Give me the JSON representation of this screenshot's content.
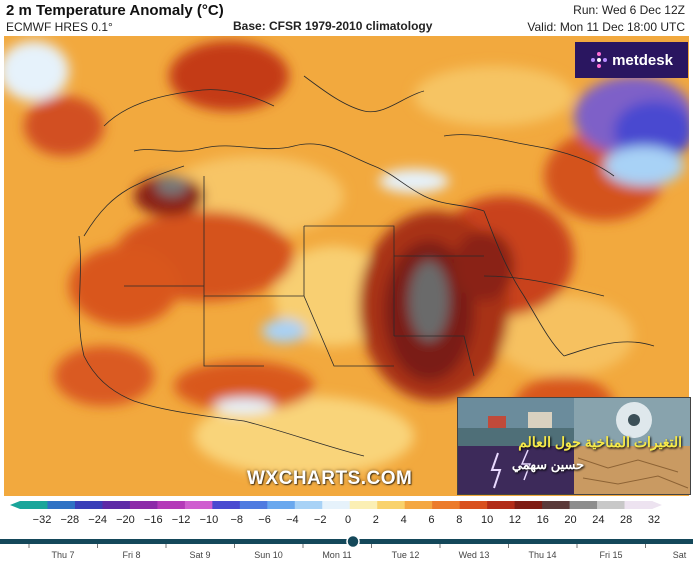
{
  "header": {
    "title": "2 m Temperature Anomaly (°C)",
    "model": "ECMWF HRES 0.1°",
    "base": "Base: CFSR 1979-2010 climatology",
    "run": "Run: Wed 6 Dec 12Z",
    "valid": "Valid: Mon 11 Dec 18:00 UTC"
  },
  "brand": {
    "name": "metdesk",
    "icon": "metdesk-logo-icon"
  },
  "watermark": "WXCHARTS.COM",
  "overlay": {
    "line1": "التغيرات المناخية حول العالم",
    "line2": "حسين سهمي"
  },
  "legend": {
    "ticks": [
      "−32",
      "−28",
      "−24",
      "−20",
      "−16",
      "−12",
      "−10",
      "−8",
      "−6",
      "−4",
      "−2",
      "0",
      "2",
      "4",
      "6",
      "8",
      "10",
      "12",
      "16",
      "20",
      "24",
      "28",
      "32"
    ],
    "colors": [
      "#1aa59a",
      "#2f72c4",
      "#3a3fb8",
      "#5e2aa6",
      "#8c2aa8",
      "#b43ab8",
      "#cf5fcf",
      "#4a4ad0",
      "#4f7be0",
      "#6aa8ee",
      "#a8d2f6",
      "#e6f2fb",
      "#fbefb4",
      "#f9d26c",
      "#f4a742",
      "#ec7b2b",
      "#d9501e",
      "#b22c18",
      "#7e1c14",
      "#5a3a3a",
      "#8d8d8d",
      "#c8c8c8",
      "#ede3f0"
    ]
  },
  "timeline": {
    "days": [
      "Thu 7",
      "Fri 8",
      "Sat 9",
      "Sun 10",
      "Mon 11",
      "Tue 12",
      "Wed 13",
      "Thu 14",
      "Fri 15",
      "Sat"
    ],
    "current": "Mon 11"
  },
  "palette": {
    "map_base": "#f2a93e",
    "hot": "#c9431b",
    "very_hot": "#7a1f12",
    "extreme": "#6a6a6a",
    "cold": "#9fc6ea",
    "accent": "#14485a"
  }
}
